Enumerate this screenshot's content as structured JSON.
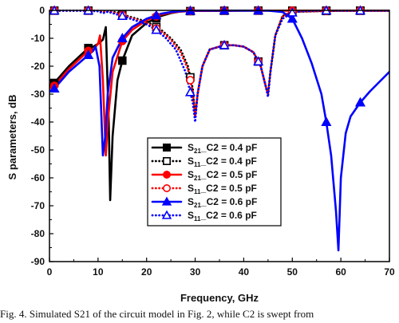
{
  "chart_data": {
    "type": "line",
    "xlabel": "Frequency, GHz",
    "ylabel": "S parameters, dB",
    "xlim": [
      0,
      70
    ],
    "ylim": [
      -90,
      0
    ],
    "xticks": [
      "0",
      "10",
      "20",
      "30",
      "40",
      "50",
      "60",
      "70"
    ],
    "yticks": [
      "0",
      "-10",
      "-20",
      "-30",
      "-40",
      "-50",
      "-60",
      "-70",
      "-80",
      "-90"
    ],
    "grid": false,
    "legend_position": "center",
    "series": [
      {
        "name": "S21_C2 = 0.4 pF",
        "base": "S",
        "sub": "21",
        "suffix": "_C2 = 0.4 pF",
        "color": "#000000",
        "style": "solid",
        "marker": "square",
        "filled": true,
        "x": [
          0,
          1,
          4,
          8,
          9,
          10,
          11,
          11.6,
          12.2,
          12.5,
          13,
          14,
          15,
          17,
          20,
          23,
          25,
          27,
          30,
          40,
          50,
          60,
          70
        ],
        "y": [
          -27,
          -26,
          -20,
          -13.5,
          -13,
          -12,
          -10.5,
          -6,
          -40,
          -68,
          -45,
          -25,
          -18,
          -9,
          -4.5,
          -2,
          -1,
          -0.4,
          -0.2,
          -0.1,
          -0.1,
          -0.1,
          -0.1
        ],
        "marker_x": [
          1,
          8,
          15,
          22,
          29,
          36,
          43,
          50,
          57,
          64
        ]
      },
      {
        "name": "S11_C2 = 0.4 pF",
        "base": "S",
        "sub": "11",
        "suffix": "_C2 = 0.4 pF",
        "color": "#000000",
        "style": "dotted",
        "marker": "square",
        "filled": false,
        "x": [
          0,
          8,
          9,
          10,
          11,
          12,
          13,
          14,
          15,
          17,
          20,
          23,
          25,
          27,
          28.5,
          29.5,
          30,
          30.5,
          31.5,
          33,
          36,
          38,
          40,
          42,
          43.5,
          44.5,
          45,
          45.5,
          46.5,
          48,
          50,
          60,
          70
        ],
        "y": [
          -0.1,
          -0.1,
          -0.1,
          -0.2,
          -0.5,
          -0.3,
          -0.5,
          -0.8,
          -1.5,
          -2.5,
          -4,
          -7,
          -10,
          -14,
          -20,
          -28,
          -38,
          -30,
          -20,
          -14,
          -12.5,
          -12.5,
          -13,
          -15,
          -20,
          -27,
          -30,
          -22,
          -9,
          -2,
          -0.5,
          -0.1,
          -0.1
        ],
        "marker_x": [
          1,
          8,
          15,
          22,
          29,
          36,
          43,
          50,
          57,
          64
        ]
      },
      {
        "name": "S21_C2 = 0.5 pF",
        "base": "S",
        "sub": "21",
        "suffix": "_C2 = 0.5 pF",
        "color": "#ff0000",
        "style": "solid",
        "marker": "circle",
        "filled": true,
        "x": [
          0,
          1,
          4,
          8,
          9,
          10,
          10.4,
          11,
          11.6,
          12,
          13,
          15,
          17,
          20,
          23,
          25,
          27,
          30,
          40,
          50,
          60,
          70
        ],
        "y": [
          -28,
          -27,
          -21,
          -14.5,
          -14,
          -12,
          -9,
          -25,
          -52,
          -40,
          -22,
          -11,
          -7,
          -3.5,
          -1.5,
          -0.8,
          -0.4,
          -0.2,
          -0.1,
          -0.1,
          -0.1,
          -0.1
        ],
        "marker_x": [
          1,
          8,
          15,
          22,
          29,
          36,
          43,
          50,
          57,
          64
        ]
      },
      {
        "name": "S11_C2 = 0.5 pF",
        "base": "S",
        "sub": "11",
        "suffix": "_C2 = 0.5 pF",
        "color": "#ff0000",
        "style": "dotted",
        "marker": "circle",
        "filled": false,
        "x": [
          0,
          8,
          9,
          10,
          11,
          12,
          13,
          15,
          17,
          20,
          23,
          25,
          27,
          28.5,
          29.5,
          30,
          30.5,
          31.5,
          33,
          36,
          38,
          40,
          42,
          43.5,
          44.5,
          45,
          45.5,
          46.5,
          48,
          50,
          60,
          70
        ],
        "y": [
          -0.1,
          -0.1,
          -0.1,
          -0.2,
          -0.6,
          -0.4,
          -0.7,
          -1.7,
          -2.8,
          -4.5,
          -7.5,
          -10.5,
          -15,
          -21,
          -29,
          -38,
          -30,
          -20,
          -14,
          -12.5,
          -12.5,
          -13,
          -15,
          -20,
          -27,
          -30,
          -22,
          -9,
          -2,
          -0.5,
          -0.1,
          -0.1
        ],
        "marker_x": [
          1,
          8,
          15,
          22,
          29,
          36,
          43,
          50,
          57,
          64
        ]
      },
      {
        "name": "S21_C2 = 0.6 pF",
        "base": "S",
        "sub": "21",
        "suffix": "_C2 = 0.6 pF",
        "color": "#0000ff",
        "style": "solid",
        "marker": "triangle",
        "filled": true,
        "x": [
          0,
          1,
          4,
          8,
          9,
          9.5,
          10.3,
          11,
          11.5,
          12,
          13,
          15,
          17,
          20,
          23,
          25,
          27,
          30,
          35,
          40,
          45,
          48,
          50,
          52,
          54,
          56,
          57,
          58,
          59,
          59.5,
          60,
          61,
          62,
          64,
          66,
          68,
          70
        ],
        "y": [
          -29,
          -28,
          -22,
          -16,
          -14.5,
          -13,
          -20,
          -52,
          -45,
          -30,
          -17,
          -10,
          -6,
          -3,
          -1.2,
          -0.6,
          -0.3,
          -0.1,
          -0.1,
          -0.1,
          -0.1,
          -0.6,
          -3,
          -10,
          -19,
          -30,
          -40,
          -52,
          -72,
          -86,
          -60,
          -44,
          -38,
          -33,
          -29,
          -25.5,
          -22
        ],
        "marker_x": [
          1,
          8,
          15,
          22,
          29,
          36,
          43,
          50,
          57,
          64
        ]
      },
      {
        "name": "S11_C2 = 0.6 pF",
        "base": "S",
        "sub": "11",
        "suffix": "_C2 = 0.6 pF",
        "color": "#0000ff",
        "style": "dotted",
        "marker": "triangle",
        "filled": false,
        "x": [
          0,
          8,
          9,
          9.5,
          10,
          11,
          12,
          13,
          15,
          17,
          20,
          22,
          24,
          26,
          28,
          29.5,
          30,
          30.5,
          31.5,
          33,
          36,
          38,
          40,
          42,
          43.5,
          44.5,
          45,
          45.5,
          46.5,
          48,
          50,
          52,
          55,
          60,
          70
        ],
        "y": [
          -0.1,
          -0.1,
          -0.2,
          -0.4,
          -0.3,
          -1,
          -0.5,
          -1,
          -2,
          -3.2,
          -5,
          -7,
          -10,
          -14,
          -22,
          -33,
          -40,
          -30,
          -20,
          -14,
          -12.5,
          -12.5,
          -13,
          -15,
          -20,
          -27,
          -31,
          -22,
          -9,
          -3,
          -0.8,
          -0.3,
          -0.1,
          -0.1,
          -0.1
        ],
        "marker_x": [
          1,
          8,
          15,
          22,
          29,
          36,
          43,
          50,
          57,
          64
        ]
      }
    ]
  },
  "caption": "Fig. 4. Simulated S21 of the circuit model in Fig. 2, while C2 is swept from"
}
